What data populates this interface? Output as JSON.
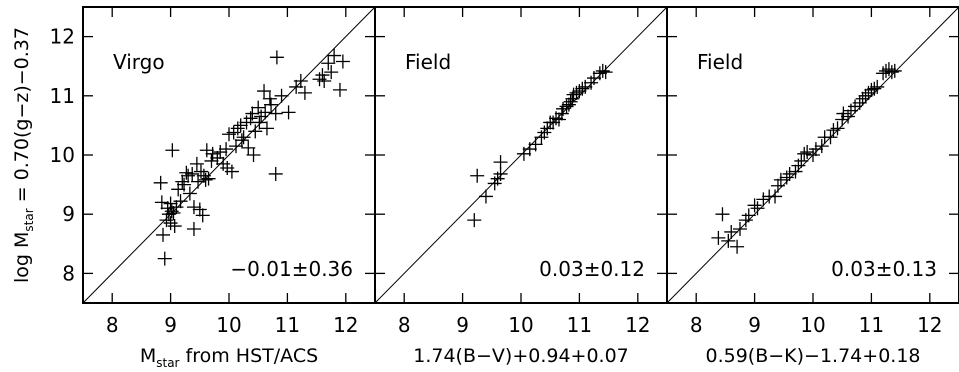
{
  "figure": {
    "ylabel_prefix": "log M",
    "ylabel_sub": "star",
    "ylabel_suffix": " = 0.70(g−z)−0.37"
  },
  "chart_data": [
    {
      "type": "scatter",
      "title": "",
      "panel_label": "Virgo",
      "annotation": "−0.01±0.36",
      "xlabel_main": "M",
      "xlabel_sub": "star",
      "xlabel_rest": " from HST/ACS",
      "xlim": [
        7.5,
        12.5
      ],
      "ylim": [
        7.5,
        12.5
      ],
      "xticks": [
        8,
        9,
        10,
        11,
        12
      ],
      "yticks": [
        8,
        9,
        10,
        11,
        12
      ],
      "reference_line": "one-to-one",
      "points": [
        [
          8.83,
          9.53
        ],
        [
          8.85,
          9.2
        ],
        [
          8.87,
          8.65
        ],
        [
          8.9,
          8.25
        ],
        [
          8.93,
          8.9
        ],
        [
          8.95,
          9.1
        ],
        [
          8.97,
          9.0
        ],
        [
          9.0,
          9.18
        ],
        [
          9.0,
          8.85
        ],
        [
          9.02,
          9.05
        ],
        [
          9.03,
          10.08
        ],
        [
          9.05,
          9.02
        ],
        [
          9.07,
          8.8
        ],
        [
          9.1,
          9.12
        ],
        [
          9.13,
          9.42
        ],
        [
          9.17,
          9.22
        ],
        [
          9.2,
          9.55
        ],
        [
          9.23,
          9.5
        ],
        [
          9.27,
          9.7
        ],
        [
          9.3,
          9.65
        ],
        [
          9.33,
          9.35
        ],
        [
          9.37,
          9.68
        ],
        [
          9.4,
          9.12
        ],
        [
          9.4,
          8.75
        ],
        [
          9.45,
          9.85
        ],
        [
          9.47,
          9.55
        ],
        [
          9.5,
          9.08
        ],
        [
          9.52,
          9.72
        ],
        [
          9.55,
          8.98
        ],
        [
          9.57,
          9.65
        ],
        [
          9.6,
          9.58
        ],
        [
          9.62,
          10.08
        ],
        [
          9.65,
          9.6
        ],
        [
          9.7,
          9.9
        ],
        [
          9.72,
          10.02
        ],
        [
          9.8,
          9.95
        ],
        [
          9.85,
          10.05
        ],
        [
          9.9,
          9.85
        ],
        [
          9.95,
          10.1
        ],
        [
          9.97,
          9.78
        ],
        [
          10.0,
          10.35
        ],
        [
          10.05,
          9.72
        ],
        [
          10.08,
          10.38
        ],
        [
          10.12,
          10.15
        ],
        [
          10.15,
          10.45
        ],
        [
          10.2,
          10.5
        ],
        [
          10.22,
          10.25
        ],
        [
          10.25,
          10.3
        ],
        [
          10.3,
          10.55
        ],
        [
          10.33,
          10.12
        ],
        [
          10.37,
          10.62
        ],
        [
          10.4,
          10.7
        ],
        [
          10.42,
          10.0
        ],
        [
          10.45,
          10.4
        ],
        [
          10.5,
          10.8
        ],
        [
          10.52,
          10.55
        ],
        [
          10.55,
          10.65
        ],
        [
          10.6,
          11.08
        ],
        [
          10.62,
          10.72
        ],
        [
          10.65,
          10.45
        ],
        [
          10.7,
          10.95
        ],
        [
          10.72,
          10.85
        ],
        [
          10.8,
          10.7
        ],
        [
          10.82,
          11.65
        ],
        [
          10.8,
          9.68
        ],
        [
          10.9,
          11.0
        ],
        [
          11.02,
          10.72
        ],
        [
          11.15,
          11.15
        ],
        [
          11.23,
          11.25
        ],
        [
          11.3,
          11.05
        ],
        [
          11.55,
          11.28
        ],
        [
          11.6,
          11.35
        ],
        [
          11.63,
          11.25
        ],
        [
          11.7,
          11.55
        ],
        [
          11.75,
          11.4
        ],
        [
          11.8,
          11.68
        ],
        [
          11.9,
          11.1
        ],
        [
          11.95,
          11.58
        ]
      ]
    },
    {
      "type": "scatter",
      "title": "",
      "panel_label": "Field",
      "annotation": "0.03±0.12",
      "xlabel_main": "1.74(B−V)+0.94+0.07",
      "xlim": [
        7.5,
        12.5
      ],
      "ylim": [
        7.5,
        12.5
      ],
      "xticks": [
        8,
        9,
        10,
        11,
        12
      ],
      "yticks": [
        8,
        9,
        10,
        11,
        12
      ],
      "reference_line": "one-to-one",
      "points": [
        [
          9.2,
          8.9
        ],
        [
          9.25,
          9.65
        ],
        [
          9.4,
          9.3
        ],
        [
          9.55,
          9.52
        ],
        [
          9.6,
          9.6
        ],
        [
          9.65,
          9.68
        ],
        [
          9.65,
          9.88
        ],
        [
          10.05,
          10.02
        ],
        [
          10.15,
          10.1
        ],
        [
          10.25,
          10.18
        ],
        [
          10.35,
          10.3
        ],
        [
          10.4,
          10.38
        ],
        [
          10.45,
          10.45
        ],
        [
          10.5,
          10.55
        ],
        [
          10.55,
          10.55
        ],
        [
          10.6,
          10.62
        ],
        [
          10.65,
          10.6
        ],
        [
          10.7,
          10.7
        ],
        [
          10.72,
          10.78
        ],
        [
          10.78,
          10.82
        ],
        [
          10.82,
          10.85
        ],
        [
          10.85,
          10.9
        ],
        [
          10.88,
          10.95
        ],
        [
          10.9,
          11.02
        ],
        [
          10.95,
          11.05
        ],
        [
          11.0,
          11.08
        ],
        [
          11.05,
          11.12
        ],
        [
          11.1,
          11.15
        ],
        [
          11.2,
          11.22
        ],
        [
          11.25,
          11.3
        ],
        [
          11.35,
          11.38
        ],
        [
          11.4,
          11.42
        ],
        [
          11.45,
          11.4
        ]
      ]
    },
    {
      "type": "scatter",
      "title": "",
      "panel_label": "Field",
      "annotation": "0.03±0.13",
      "xlabel_main": "0.59(B−K)−1.74+0.18",
      "xlim": [
        7.5,
        12.5
      ],
      "ylim": [
        7.5,
        12.5
      ],
      "xticks": [
        8,
        9,
        10,
        11,
        12
      ],
      "yticks": [
        8,
        9,
        10,
        11,
        12
      ],
      "reference_line": "one-to-one",
      "points": [
        [
          8.38,
          8.6
        ],
        [
          8.45,
          9.0
        ],
        [
          8.55,
          8.55
        ],
        [
          8.6,
          8.7
        ],
        [
          8.7,
          8.45
        ],
        [
          8.75,
          8.75
        ],
        [
          8.85,
          8.9
        ],
        [
          8.9,
          8.98
        ],
        [
          9.0,
          9.15
        ],
        [
          9.05,
          9.1
        ],
        [
          9.15,
          9.25
        ],
        [
          9.25,
          9.3
        ],
        [
          9.35,
          9.3
        ],
        [
          9.4,
          9.48
        ],
        [
          9.45,
          9.58
        ],
        [
          9.55,
          9.62
        ],
        [
          9.6,
          9.68
        ],
        [
          9.7,
          9.72
        ],
        [
          9.75,
          9.82
        ],
        [
          9.8,
          9.9
        ],
        [
          9.85,
          10.02
        ],
        [
          9.9,
          10.05
        ],
        [
          10.0,
          10.0
        ],
        [
          10.05,
          10.1
        ],
        [
          10.15,
          10.15
        ],
        [
          10.2,
          10.3
        ],
        [
          10.3,
          10.3
        ],
        [
          10.35,
          10.42
        ],
        [
          10.42,
          10.45
        ],
        [
          10.5,
          10.6
        ],
        [
          10.52,
          10.7
        ],
        [
          10.6,
          10.65
        ],
        [
          10.65,
          10.75
        ],
        [
          10.72,
          10.82
        ],
        [
          10.8,
          10.88
        ],
        [
          10.85,
          10.95
        ],
        [
          10.9,
          11.0
        ],
        [
          10.95,
          11.05
        ],
        [
          11.0,
          11.1
        ],
        [
          11.05,
          11.12
        ],
        [
          11.1,
          11.15
        ],
        [
          11.2,
          11.38
        ],
        [
          11.25,
          11.42
        ],
        [
          11.3,
          11.45
        ],
        [
          11.35,
          11.4
        ],
        [
          11.4,
          11.42
        ]
      ]
    }
  ]
}
